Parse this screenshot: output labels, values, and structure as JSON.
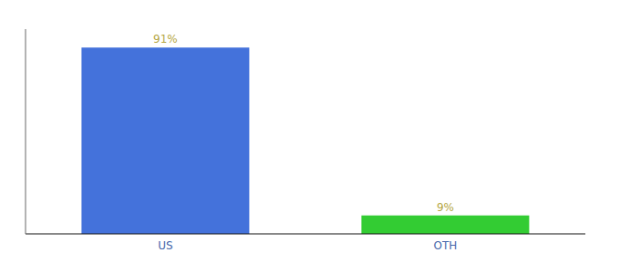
{
  "chart_data": {
    "type": "bar",
    "categories": [
      "US",
      "OTH"
    ],
    "values": [
      91,
      9
    ],
    "value_labels": [
      "91%",
      "9%"
    ],
    "colors": [
      "#4472db",
      "#33cc33"
    ],
    "ylim": [
      0,
      100
    ],
    "data_labels": true,
    "tick_labels": "x",
    "grid": false
  }
}
